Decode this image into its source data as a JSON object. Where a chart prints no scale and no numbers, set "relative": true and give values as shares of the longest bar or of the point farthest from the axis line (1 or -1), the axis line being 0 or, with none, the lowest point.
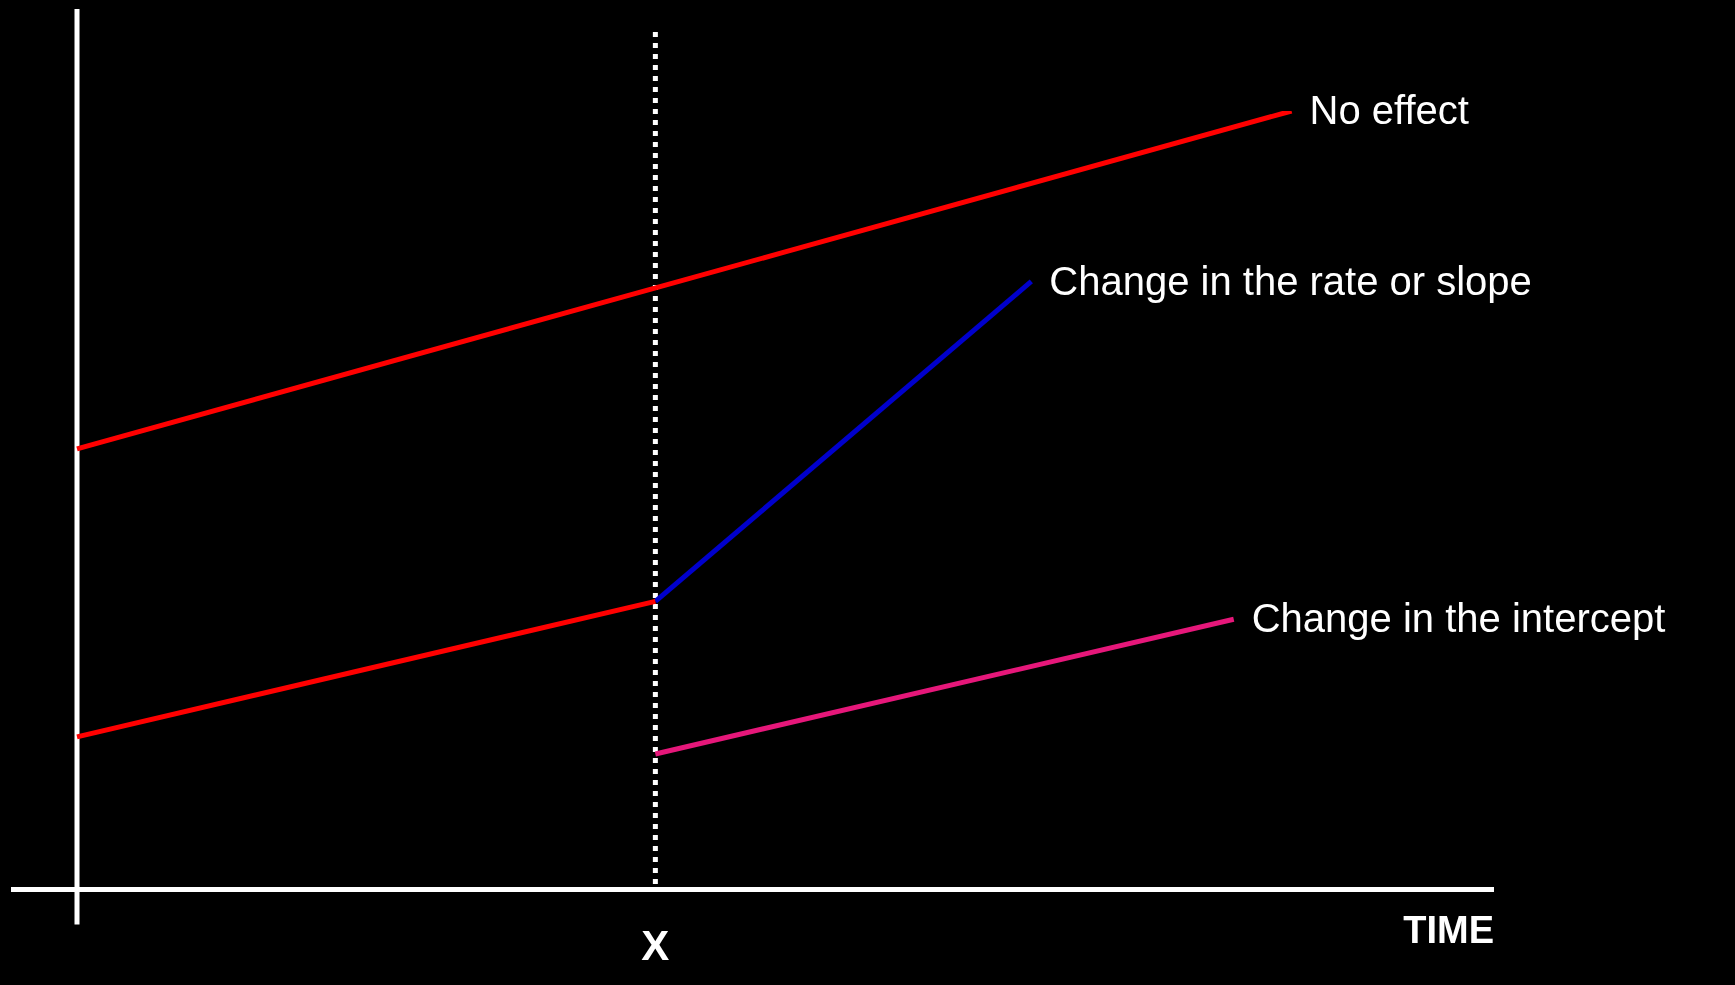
{
  "chart_data": {
    "type": "line",
    "xlabel": "TIME",
    "relative": true,
    "tick_labels": false,
    "marker": "none",
    "line_style": "solid",
    "categories": [
      null,
      null,
      null,
      null,
      null,
      null,
      null,
      null,
      null,
      null,
      null,
      null,
      null,
      null,
      null,
      null,
      null,
      null,
      null,
      null,
      null,
      null,
      null,
      null,
      null,
      null,
      null,
      null,
      null,
      null,
      null,
      null,
      null,
      null,
      null,
      null,
      null,
      null,
      null,
      null,
      null,
      null,
      null,
      null,
      null,
      null,
      null,
      null,
      null,
      null
    ],
    "series": [
      {
        "name": "No effect",
        "color": "#ff0000",
        "values": [
          0.566,
          null,
          null,
          null,
          null,
          null,
          null,
          null,
          null,
          null,
          null,
          null,
          null,
          null,
          null,
          null,
          null,
          null,
          null,
          null,
          null,
          null,
          null,
          null,
          null,
          null,
          null,
          null,
          null,
          null,
          null,
          null,
          null,
          null,
          null,
          null,
          null,
          null,
          null,
          null,
          null,
          null,
          1.0,
          null,
          null,
          null,
          null,
          null,
          null,
          null
        ]
      },
      {
        "color": "#ff0000",
        "values": [
          0.196,
          null,
          null,
          null,
          null,
          null,
          null,
          null,
          null,
          null,
          null,
          null,
          null,
          null,
          null,
          null,
          null,
          null,
          null,
          null,
          0.37,
          null,
          null,
          null,
          null,
          null,
          null,
          null,
          null,
          null,
          null,
          null,
          null,
          null,
          null,
          null,
          null,
          null,
          null,
          null,
          null,
          null,
          null,
          null,
          null,
          null,
          null,
          null,
          null,
          null
        ]
      },
      {
        "name": "Change in the rate or slope",
        "color": "#0000cc",
        "values": [
          null,
          null,
          null,
          null,
          null,
          null,
          null,
          null,
          null,
          null,
          null,
          null,
          null,
          null,
          null,
          null,
          null,
          null,
          null,
          null,
          0.37,
          null,
          null,
          null,
          null,
          null,
          null,
          null,
          null,
          null,
          null,
          null,
          null,
          0.781,
          null,
          null,
          null,
          null,
          null,
          null,
          null,
          null,
          null,
          null,
          null,
          null,
          null,
          null,
          null,
          null
        ]
      },
      {
        "name": "Change in the intercept",
        "color": "#e6177a",
        "values": [
          null,
          null,
          null,
          null,
          null,
          null,
          null,
          null,
          null,
          null,
          null,
          null,
          null,
          null,
          null,
          null,
          null,
          null,
          null,
          null,
          0.174,
          null,
          null,
          null,
          null,
          null,
          null,
          null,
          null,
          null,
          null,
          null,
          null,
          null,
          null,
          null,
          null,
          null,
          null,
          null,
          0.347,
          null,
          null,
          null,
          null,
          null,
          null,
          null,
          null,
          null
        ]
      }
    ],
    "annotations": [
      "X"
    ]
  }
}
